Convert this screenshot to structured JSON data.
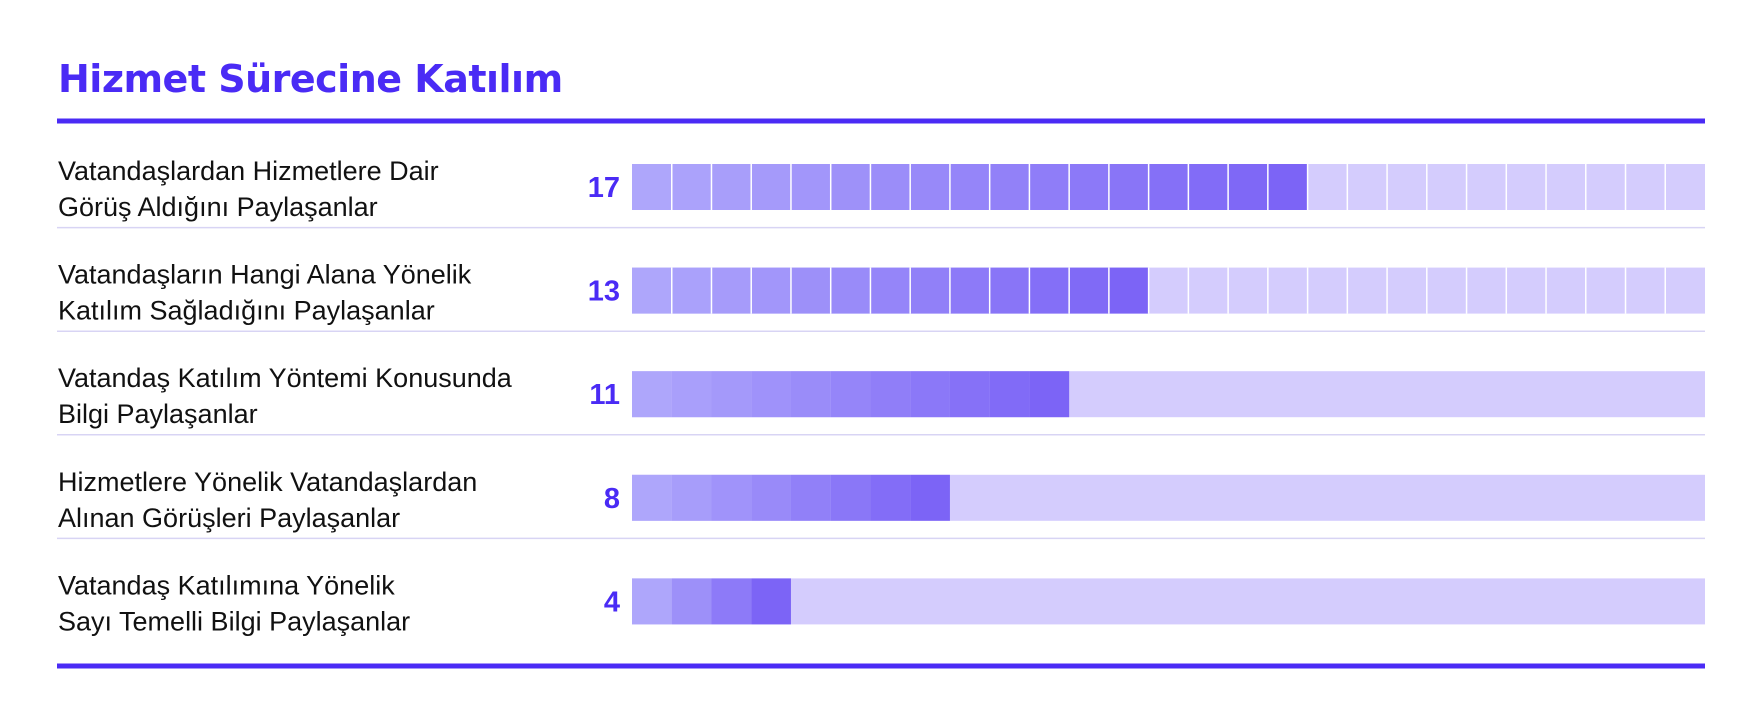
{
  "chart_data": {
    "type": "bar",
    "title": "Hizmet Sürecine Katılım",
    "categories": [
      [
        "Vatandaşlardan Hizmetlere Dair",
        "Görüş Aldığını Paylaşanlar"
      ],
      [
        "Vatandaşların Hangi Alana Yönelik",
        "Katılım Sağladığını Paylaşanlar"
      ],
      [
        "Vatandaş Katılım Yöntemi Konusunda",
        "Bilgi Paylaşanlar"
      ],
      [
        "Hizmetlere Yönelik Vatandaşlardan",
        "Alınan Görüşleri Paylaşanlar"
      ],
      [
        "Vatandaş Katılımına Yönelik",
        "Sayı Temelli Bilgi Paylaşanlar"
      ]
    ],
    "values": [
      17,
      13,
      11,
      8,
      4
    ],
    "scale_max": 27,
    "grid_cells_visible": [
      true,
      true,
      false,
      false,
      false
    ],
    "orientation": "horizontal",
    "legend": "none",
    "colors": {
      "accent": "#4a2bf5",
      "bar_fill_light": "#aea6fb",
      "bar_fill_dark": "#7c64f6",
      "bar_track": "#d4ccfd",
      "row_divider": "#d8d4f4"
    }
  }
}
